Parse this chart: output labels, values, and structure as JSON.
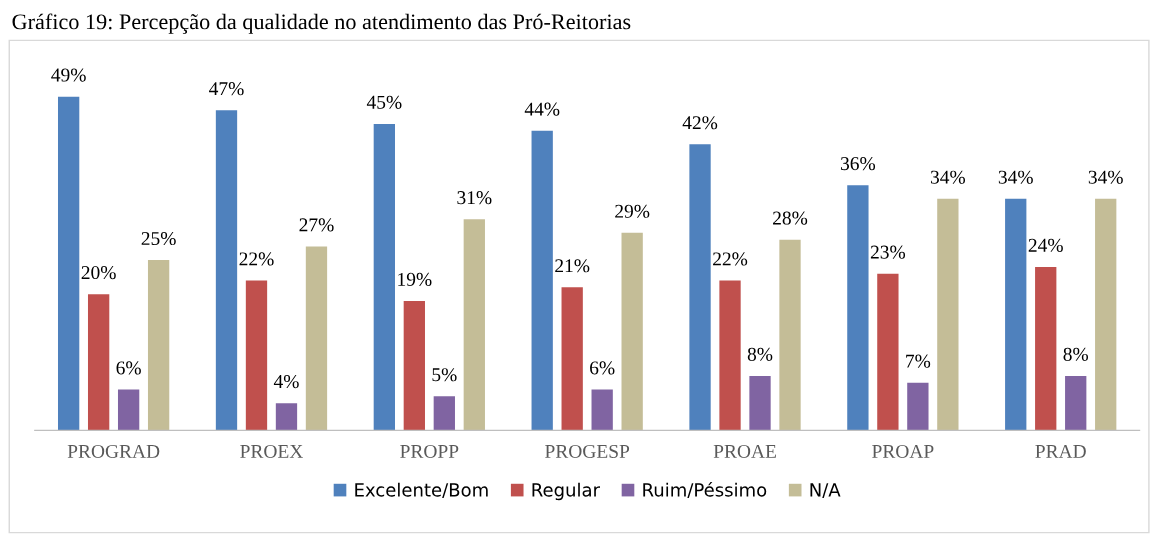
{
  "chart_data": {
    "type": "bar",
    "title": "Gráfico 19: Percepção da qualidade no atendimento das Pró-Reitorias",
    "categories": [
      "PROGRAD",
      "PROEX",
      "PROPP",
      "PROGESP",
      "PROAE",
      "PROAP",
      "PRAD"
    ],
    "series": [
      {
        "name": "Excelente/Bom",
        "color": "#4f81bd",
        "values": [
          49,
          47,
          45,
          44,
          42,
          36,
          34
        ],
        "value_labels": [
          "49%",
          "47%",
          "45%",
          "44%",
          "42%",
          "36%",
          "34%"
        ]
      },
      {
        "name": "Regular",
        "color": "#c0504d",
        "values": [
          20,
          22,
          19,
          21,
          22,
          23,
          24
        ],
        "value_labels": [
          "20%",
          "22%",
          "19%",
          "21%",
          "22%",
          "23%",
          "24%"
        ]
      },
      {
        "name": "Ruim/Péssimo",
        "color": "#8064a2",
        "values": [
          6,
          4,
          5,
          6,
          8,
          7,
          8
        ],
        "value_labels": [
          "6%",
          "4%",
          "5%",
          "6%",
          "8%",
          "7%",
          "8%"
        ]
      },
      {
        "name": "N/A",
        "color": "#c4bd97",
        "values": [
          25,
          27,
          31,
          29,
          28,
          34,
          34
        ],
        "value_labels": [
          "25%",
          "27%",
          "31%",
          "29%",
          "28%",
          "34%",
          "34%"
        ]
      }
    ],
    "grid": false,
    "legend": "bottom"
  }
}
